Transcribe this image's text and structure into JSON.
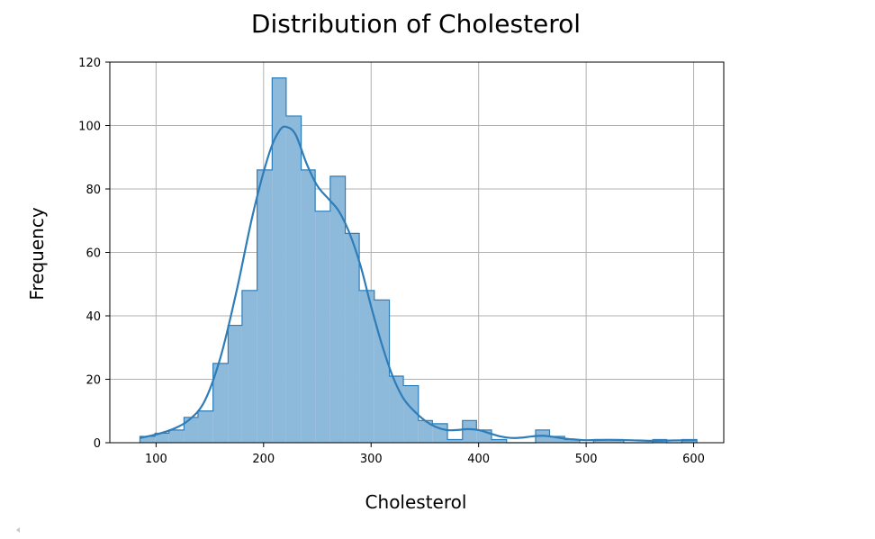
{
  "chart_data": {
    "type": "bar",
    "title": "Distribution of Cholesterol",
    "xlabel": "Cholesterol",
    "ylabel": "Frequency",
    "xlim": [
      57,
      628
    ],
    "ylim": [
      0,
      120
    ],
    "xticks": [
      100,
      200,
      300,
      400,
      500,
      600
    ],
    "yticks": [
      0,
      20,
      40,
      60,
      80,
      100,
      120
    ],
    "grid": true,
    "bins": [
      {
        "x0": 85,
        "x1": 99,
        "count": 2
      },
      {
        "x0": 99,
        "x1": 112,
        "count": 3
      },
      {
        "x0": 112,
        "x1": 126,
        "count": 4
      },
      {
        "x0": 126,
        "x1": 139,
        "count": 8
      },
      {
        "x0": 139,
        "x1": 153,
        "count": 10
      },
      {
        "x0": 153,
        "x1": 167,
        "count": 25
      },
      {
        "x0": 167,
        "x1": 180,
        "count": 37
      },
      {
        "x0": 180,
        "x1": 194,
        "count": 48
      },
      {
        "x0": 194,
        "x1": 208,
        "count": 86
      },
      {
        "x0": 208,
        "x1": 221,
        "count": 115
      },
      {
        "x0": 221,
        "x1": 235,
        "count": 103
      },
      {
        "x0": 235,
        "x1": 248,
        "count": 86
      },
      {
        "x0": 248,
        "x1": 262,
        "count": 73
      },
      {
        "x0": 262,
        "x1": 276,
        "count": 84
      },
      {
        "x0": 276,
        "x1": 289,
        "count": 66
      },
      {
        "x0": 289,
        "x1": 303,
        "count": 48
      },
      {
        "x0": 303,
        "x1": 317,
        "count": 45
      },
      {
        "x0": 317,
        "x1": 330,
        "count": 21
      },
      {
        "x0": 330,
        "x1": 344,
        "count": 18
      },
      {
        "x0": 344,
        "x1": 357,
        "count": 7
      },
      {
        "x0": 357,
        "x1": 371,
        "count": 6
      },
      {
        "x0": 371,
        "x1": 385,
        "count": 1
      },
      {
        "x0": 385,
        "x1": 398,
        "count": 7
      },
      {
        "x0": 398,
        "x1": 412,
        "count": 4
      },
      {
        "x0": 412,
        "x1": 426,
        "count": 1
      },
      {
        "x0": 426,
        "x1": 439,
        "count": 0
      },
      {
        "x0": 439,
        "x1": 453,
        "count": 0
      },
      {
        "x0": 453,
        "x1": 466,
        "count": 4
      },
      {
        "x0": 466,
        "x1": 480,
        "count": 2
      },
      {
        "x0": 480,
        "x1": 494,
        "count": 1
      },
      {
        "x0": 494,
        "x1": 507,
        "count": 0
      },
      {
        "x0": 507,
        "x1": 521,
        "count": 1
      },
      {
        "x0": 521,
        "x1": 535,
        "count": 1
      },
      {
        "x0": 535,
        "x1": 548,
        "count": 0
      },
      {
        "x0": 548,
        "x1": 562,
        "count": 0
      },
      {
        "x0": 562,
        "x1": 575,
        "count": 1
      },
      {
        "x0": 575,
        "x1": 589,
        "count": 0
      },
      {
        "x0": 589,
        "x1": 603,
        "count": 1
      }
    ],
    "kde": [
      [
        85,
        1.5
      ],
      [
        100,
        2.6
      ],
      [
        115,
        4.2
      ],
      [
        130,
        7.0
      ],
      [
        145,
        13
      ],
      [
        160,
        27
      ],
      [
        175,
        48
      ],
      [
        190,
        72
      ],
      [
        205,
        91
      ],
      [
        215,
        98.5
      ],
      [
        222,
        99.5
      ],
      [
        230,
        97
      ],
      [
        240,
        88
      ],
      [
        250,
        81
      ],
      [
        260,
        77
      ],
      [
        270,
        73
      ],
      [
        280,
        66
      ],
      [
        290,
        56
      ],
      [
        300,
        43
      ],
      [
        310,
        31
      ],
      [
        320,
        21
      ],
      [
        330,
        14
      ],
      [
        340,
        10
      ],
      [
        350,
        7
      ],
      [
        360,
        5
      ],
      [
        370,
        4
      ],
      [
        380,
        4
      ],
      [
        390,
        4.3
      ],
      [
        400,
        4
      ],
      [
        410,
        3
      ],
      [
        420,
        2
      ],
      [
        430,
        1.5
      ],
      [
        440,
        1.6
      ],
      [
        450,
        2.0
      ],
      [
        460,
        2.2
      ],
      [
        470,
        1.8
      ],
      [
        480,
        1.3
      ],
      [
        490,
        1.0
      ],
      [
        500,
        0.8
      ],
      [
        520,
        0.9
      ],
      [
        540,
        0.8
      ],
      [
        560,
        0.6
      ],
      [
        580,
        0.7
      ],
      [
        603,
        0.8
      ]
    ],
    "colors": {
      "fill": "#8db9da",
      "edge": "#2e7db9",
      "kde": "#2e7db9",
      "grid": "#b0b0b0",
      "axis": "#000000"
    }
  }
}
